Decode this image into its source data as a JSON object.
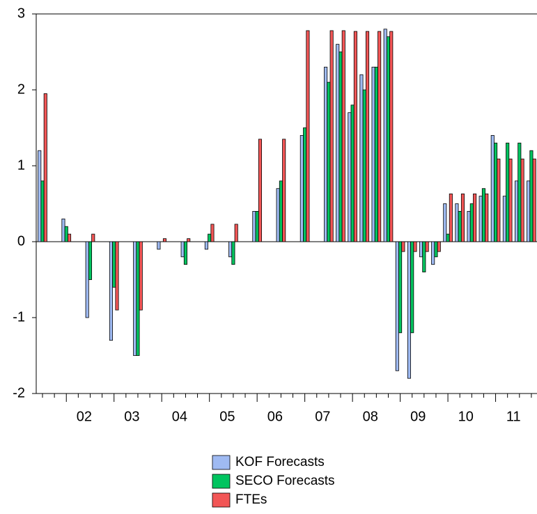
{
  "chart_data": {
    "type": "bar",
    "categories": [
      null,
      null,
      null,
      "02",
      null,
      null,
      null,
      "03",
      null,
      null,
      null,
      "04",
      null,
      null,
      null,
      "05",
      null,
      null,
      null,
      "06",
      null,
      null,
      null,
      "07",
      null,
      null,
      null,
      "08",
      null,
      null,
      null,
      "09",
      null,
      null,
      null,
      "10",
      null,
      null,
      null,
      "11",
      null,
      null
    ],
    "series": [
      {
        "name": "KOF Forecasts",
        "color": "#9fbaf2",
        "values": [
          1.2,
          null,
          0.3,
          null,
          -1.0,
          null,
          -1.3,
          null,
          -1.5,
          null,
          -0.1,
          null,
          -0.2,
          null,
          -0.1,
          null,
          -0.2,
          null,
          0.4,
          null,
          0.7,
          null,
          1.4,
          null,
          2.3,
          2.6,
          1.7,
          2.2,
          2.3,
          2.8,
          -1.7,
          -1.8,
          -0.2,
          -0.3,
          0.5,
          0.5,
          0.4,
          0.6,
          1.4,
          0.6,
          0.8,
          0.8
        ]
      },
      {
        "name": "SECO Forecasts",
        "color": "#00c45f",
        "values": [
          0.8,
          null,
          0.2,
          null,
          -0.5,
          null,
          -0.6,
          null,
          -1.5,
          null,
          0,
          null,
          -0.3,
          null,
          0.1,
          null,
          -0.3,
          null,
          0.4,
          null,
          0.8,
          null,
          1.5,
          null,
          2.1,
          2.5,
          1.8,
          2.0,
          2.3,
          2.7,
          -1.2,
          -1.2,
          -0.4,
          -0.2,
          0.1,
          0.4,
          0.5,
          0.7,
          1.3,
          1.3,
          1.3,
          1.2
        ]
      },
      {
        "name": "FTEs",
        "color": "#f25656",
        "values": [
          1.95,
          null,
          0.1,
          null,
          0.1,
          null,
          -0.9,
          null,
          -0.9,
          null,
          0.04,
          null,
          0.04,
          null,
          0.23,
          null,
          0.23,
          null,
          1.35,
          null,
          1.35,
          null,
          2.78,
          null,
          2.78,
          2.78,
          2.77,
          2.77,
          2.77,
          2.77,
          -0.13,
          -0.13,
          -0.13,
          -0.13,
          0.63,
          0.63,
          0.63,
          0.63,
          1.09,
          1.09,
          1.09,
          1.09
        ]
      }
    ],
    "ylim": [
      -2,
      3
    ],
    "yticks": [
      -2,
      -1,
      0,
      1,
      2,
      3
    ]
  }
}
